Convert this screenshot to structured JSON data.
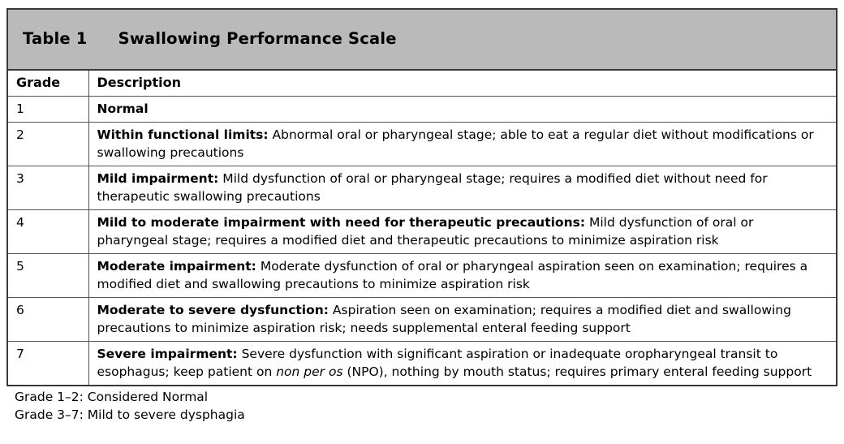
{
  "table": {
    "label": "Table 1",
    "title": "Swallowing Performance Scale",
    "columns": {
      "grade": "Grade",
      "description": "Description"
    },
    "rows": [
      {
        "grade": "1",
        "bold": "Normal",
        "pre": "",
        "italic": "",
        "post": ""
      },
      {
        "grade": "2",
        "bold": "Within functional limits:",
        "pre": " Abnormal oral or pharyngeal stage; able to eat a regular diet without modifications or swallowing precautions",
        "italic": "",
        "post": ""
      },
      {
        "grade": "3",
        "bold": "Mild impairment:",
        "pre": " Mild dysfunction of oral or pharyngeal stage; requires a modified diet without need for therapeutic swallowing precautions",
        "italic": "",
        "post": ""
      },
      {
        "grade": "4",
        "bold": "Mild to moderate impairment with need for therapeutic precautions:",
        "pre": " Mild dysfunction of oral or pharyngeal stage; requires a modified diet and therapeutic precautions to minimize aspiration risk",
        "italic": "",
        "post": ""
      },
      {
        "grade": "5",
        "bold": "Moderate impairment:",
        "pre": " Moderate dysfunction of oral or pharyngeal aspiration seen on examination; requires a modified diet and swallowing precautions to minimize aspiration risk",
        "italic": "",
        "post": ""
      },
      {
        "grade": "6",
        "bold": "Moderate to severe dysfunction:",
        "pre": " Aspiration seen on examination; requires a modified diet and swallowing precautions to minimize aspiration risk; needs supplemental enteral feeding support",
        "italic": "",
        "post": ""
      },
      {
        "grade": "7",
        "bold": "Severe impairment:",
        "pre": " Severe dysfunction with significant aspiration or inadequate oropharyngeal transit to esophagus; keep patient on ",
        "italic": "non per os",
        "post": " (NPO), nothing by mouth status; requires primary enteral feeding support"
      }
    ],
    "footnotes": [
      "Grade 1–2: Considered Normal",
      "Grade 3–7: Mild to severe dysphagia"
    ]
  },
  "colors": {
    "title_bg": "#bababa",
    "outer_border": "#383838",
    "inner_border": "#555555",
    "text": "#000000"
  }
}
